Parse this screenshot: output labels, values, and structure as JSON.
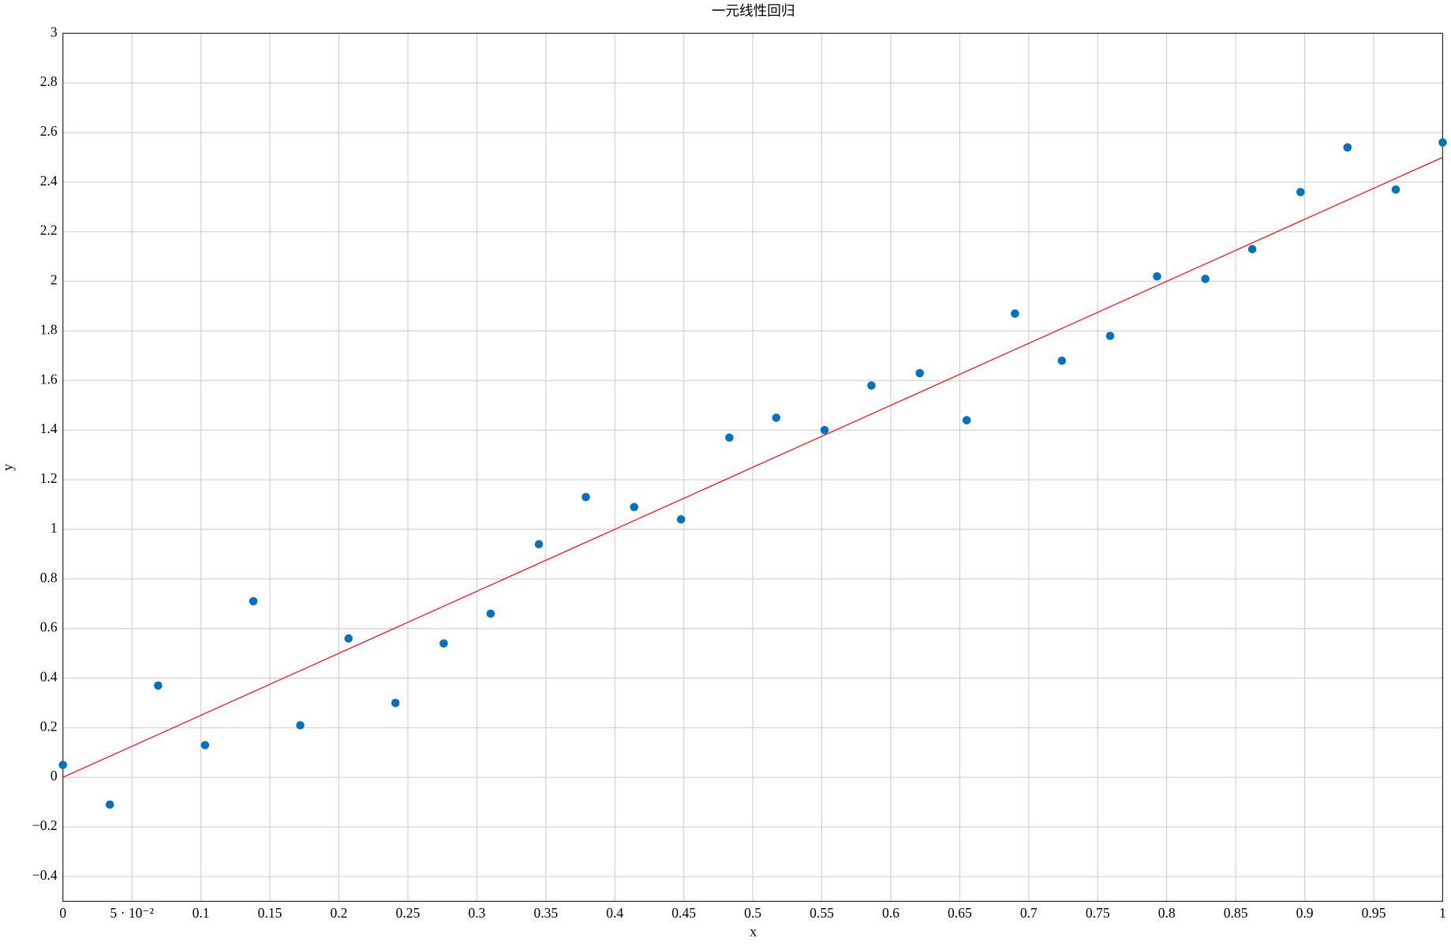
{
  "chart_data": {
    "type": "scatter",
    "title": "一元线性回归",
    "x_label": "x",
    "y_label": "y",
    "x": [
      0,
      0.034,
      0.069,
      0.103,
      0.138,
      0.172,
      0.207,
      0.241,
      0.276,
      0.31,
      0.345,
      0.379,
      0.414,
      0.448,
      0.483,
      0.517,
      0.552,
      0.586,
      0.621,
      0.655,
      0.69,
      0.724,
      0.759,
      0.793,
      0.828,
      0.862,
      0.897,
      0.931,
      0.966,
      1
    ],
    "values": [
      0.05,
      -0.11,
      0.37,
      0.13,
      0.71,
      0.21,
      0.56,
      0.3,
      0.54,
      0.66,
      0.94,
      1.13,
      1.09,
      1.04,
      1.37,
      1.45,
      1.4,
      1.58,
      1.63,
      1.44,
      1.87,
      1.68,
      1.78,
      2.02,
      2.01,
      2.13,
      2.36,
      2.54,
      2.37,
      2.56
    ],
    "color": "#0072bd",
    "fit_line": {
      "x": [
        0,
        1
      ],
      "values": [
        0,
        2.5
      ],
      "color": "#ff0000"
    },
    "xlim": [
      0,
      1
    ],
    "ylim": [
      -0.5,
      3
    ],
    "xticks": [
      0,
      {
        "value": 0.05,
        "label": "5 · 10⁻²"
      },
      0.1,
      0.15,
      0.2,
      0.25,
      0.3,
      0.35,
      0.4,
      0.45,
      0.5,
      0.55,
      0.6,
      0.65,
      0.7,
      0.75,
      0.8,
      0.85,
      0.9,
      0.95,
      1
    ],
    "yticks": [
      {
        "value": -0.4,
        "label": "−0.4"
      },
      {
        "value": -0.2,
        "label": "−0.2"
      },
      0,
      0.2,
      0.4,
      0.6,
      0.8,
      1,
      1.2,
      1.4,
      1.6,
      1.8,
      2,
      2.2,
      2.4,
      2.6,
      2.8,
      3
    ],
    "grid": true
  }
}
